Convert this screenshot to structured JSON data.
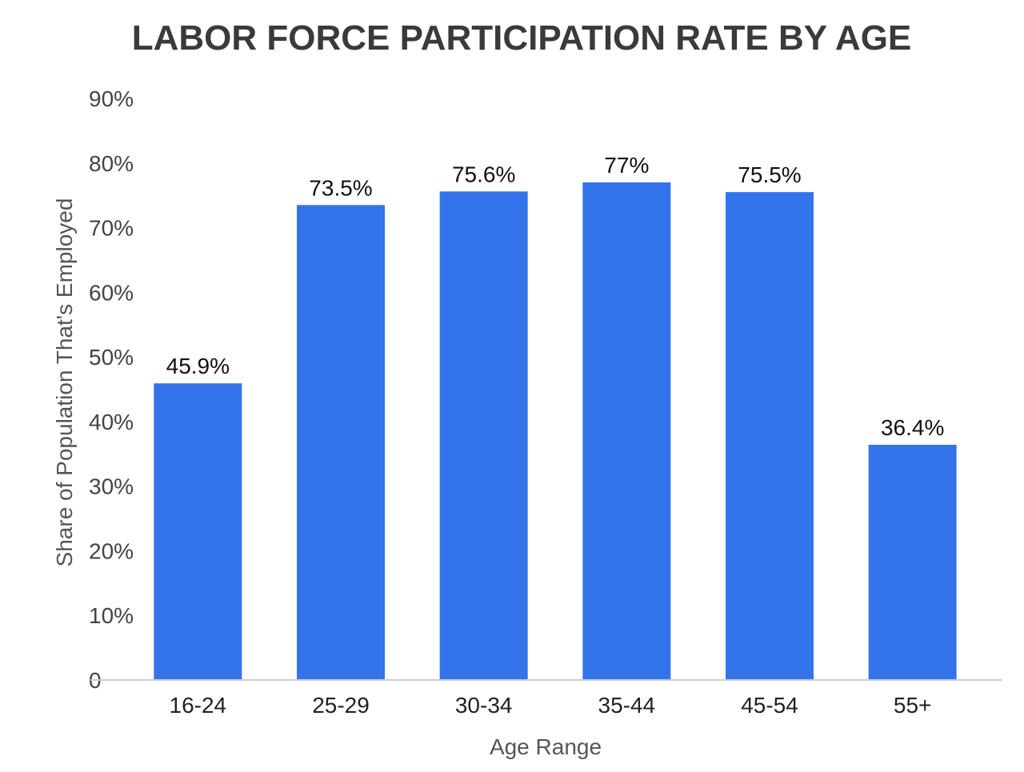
{
  "chart_data": {
    "type": "bar",
    "title": "LABOR FORCE PARTICIPATION RATE BY AGE",
    "xlabel": "Age Range",
    "ylabel": "Share of Population That's Employed",
    "categories": [
      "16-24",
      "25-29",
      "30-34",
      "35-44",
      "45-54",
      "55+"
    ],
    "values": [
      45.9,
      73.5,
      75.6,
      77,
      75.5,
      36.4
    ],
    "data_labels": [
      "45.9%",
      "73.5%",
      "75.6%",
      "77%",
      "75.5%",
      "36.4%"
    ],
    "ylim": [
      0,
      90
    ],
    "yticks": [
      0,
      10,
      20,
      30,
      40,
      50,
      60,
      70,
      80,
      90
    ],
    "ytick_labels": [
      "0",
      "10%",
      "20%",
      "30%",
      "40%",
      "50%",
      "60%",
      "70%",
      "80%",
      "90%"
    ],
    "grid": false,
    "legend": "none",
    "bar_color": "#3374eb",
    "baseline_color": "#cccccc"
  }
}
